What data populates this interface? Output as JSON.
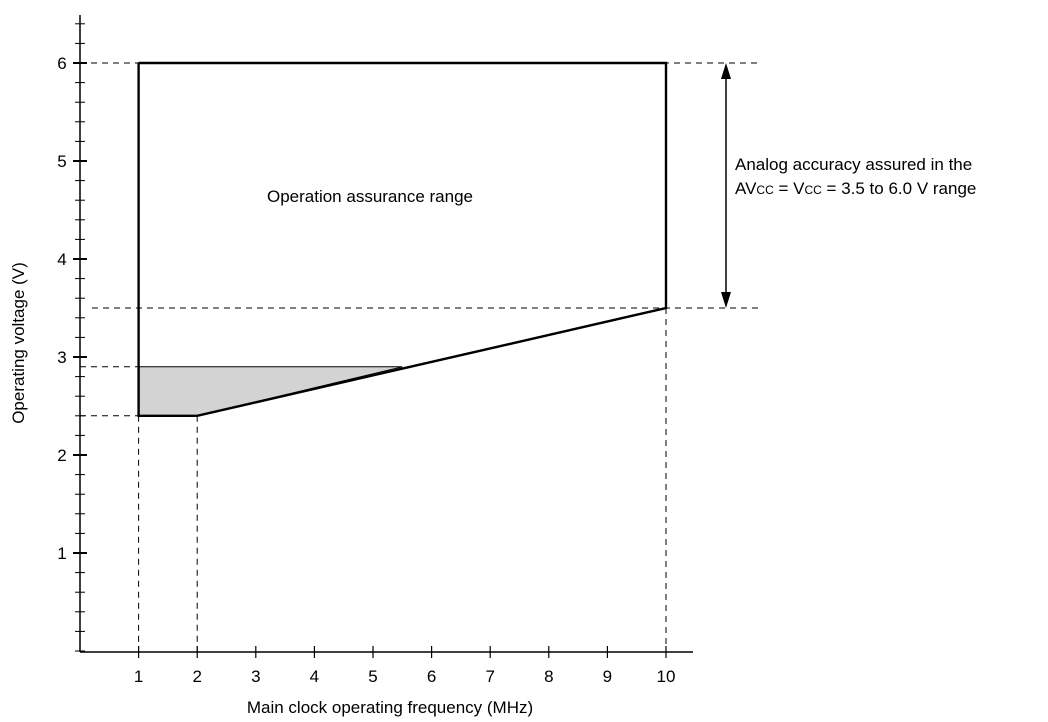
{
  "chart_data": {
    "type": "area",
    "xlabel": "Main clock operating frequency (MHz)",
    "ylabel": "Operating voltage (V)",
    "xlim": [
      0,
      10.5
    ],
    "ylim": [
      -1,
      6.5
    ],
    "x_ticks": [
      1,
      2,
      3,
      4,
      5,
      6,
      7,
      8,
      9,
      10
    ],
    "y_ticks": [
      1,
      2,
      3,
      4,
      5,
      6
    ],
    "x_tick_labels": [
      "1",
      "2",
      "3",
      "4",
      "5",
      "6",
      "7",
      "8",
      "9",
      "10"
    ],
    "y_tick_labels": [
      "1",
      "2",
      "3",
      "4",
      "5",
      "6"
    ],
    "y_minor_step": 0.2,
    "grid": false,
    "operation_assurance_range": {
      "label": "Operation assurance range",
      "boundary": [
        [
          1,
          6
        ],
        [
          10,
          6
        ],
        [
          10,
          3.5
        ],
        [
          2,
          2.4
        ],
        [
          1,
          2.4
        ],
        [
          1,
          6
        ]
      ]
    },
    "shaded_region": {
      "color": "#d3d3d3",
      "vertices": [
        [
          1,
          2.9
        ],
        [
          5.5,
          2.9
        ],
        [
          2,
          2.4
        ],
        [
          1,
          2.4
        ]
      ]
    },
    "reference_lines": {
      "horizontal_values": [
        6,
        3.5,
        2.9,
        2.4
      ],
      "vertical_values": [
        1,
        2,
        10
      ]
    },
    "annotation": {
      "line1": "Analog accuracy assured in the",
      "line2_parts": [
        "AV",
        "CC",
        " = V",
        "CC",
        " = 3.5 to 6.0 V range"
      ],
      "y_range": [
        3.5,
        6
      ]
    }
  }
}
